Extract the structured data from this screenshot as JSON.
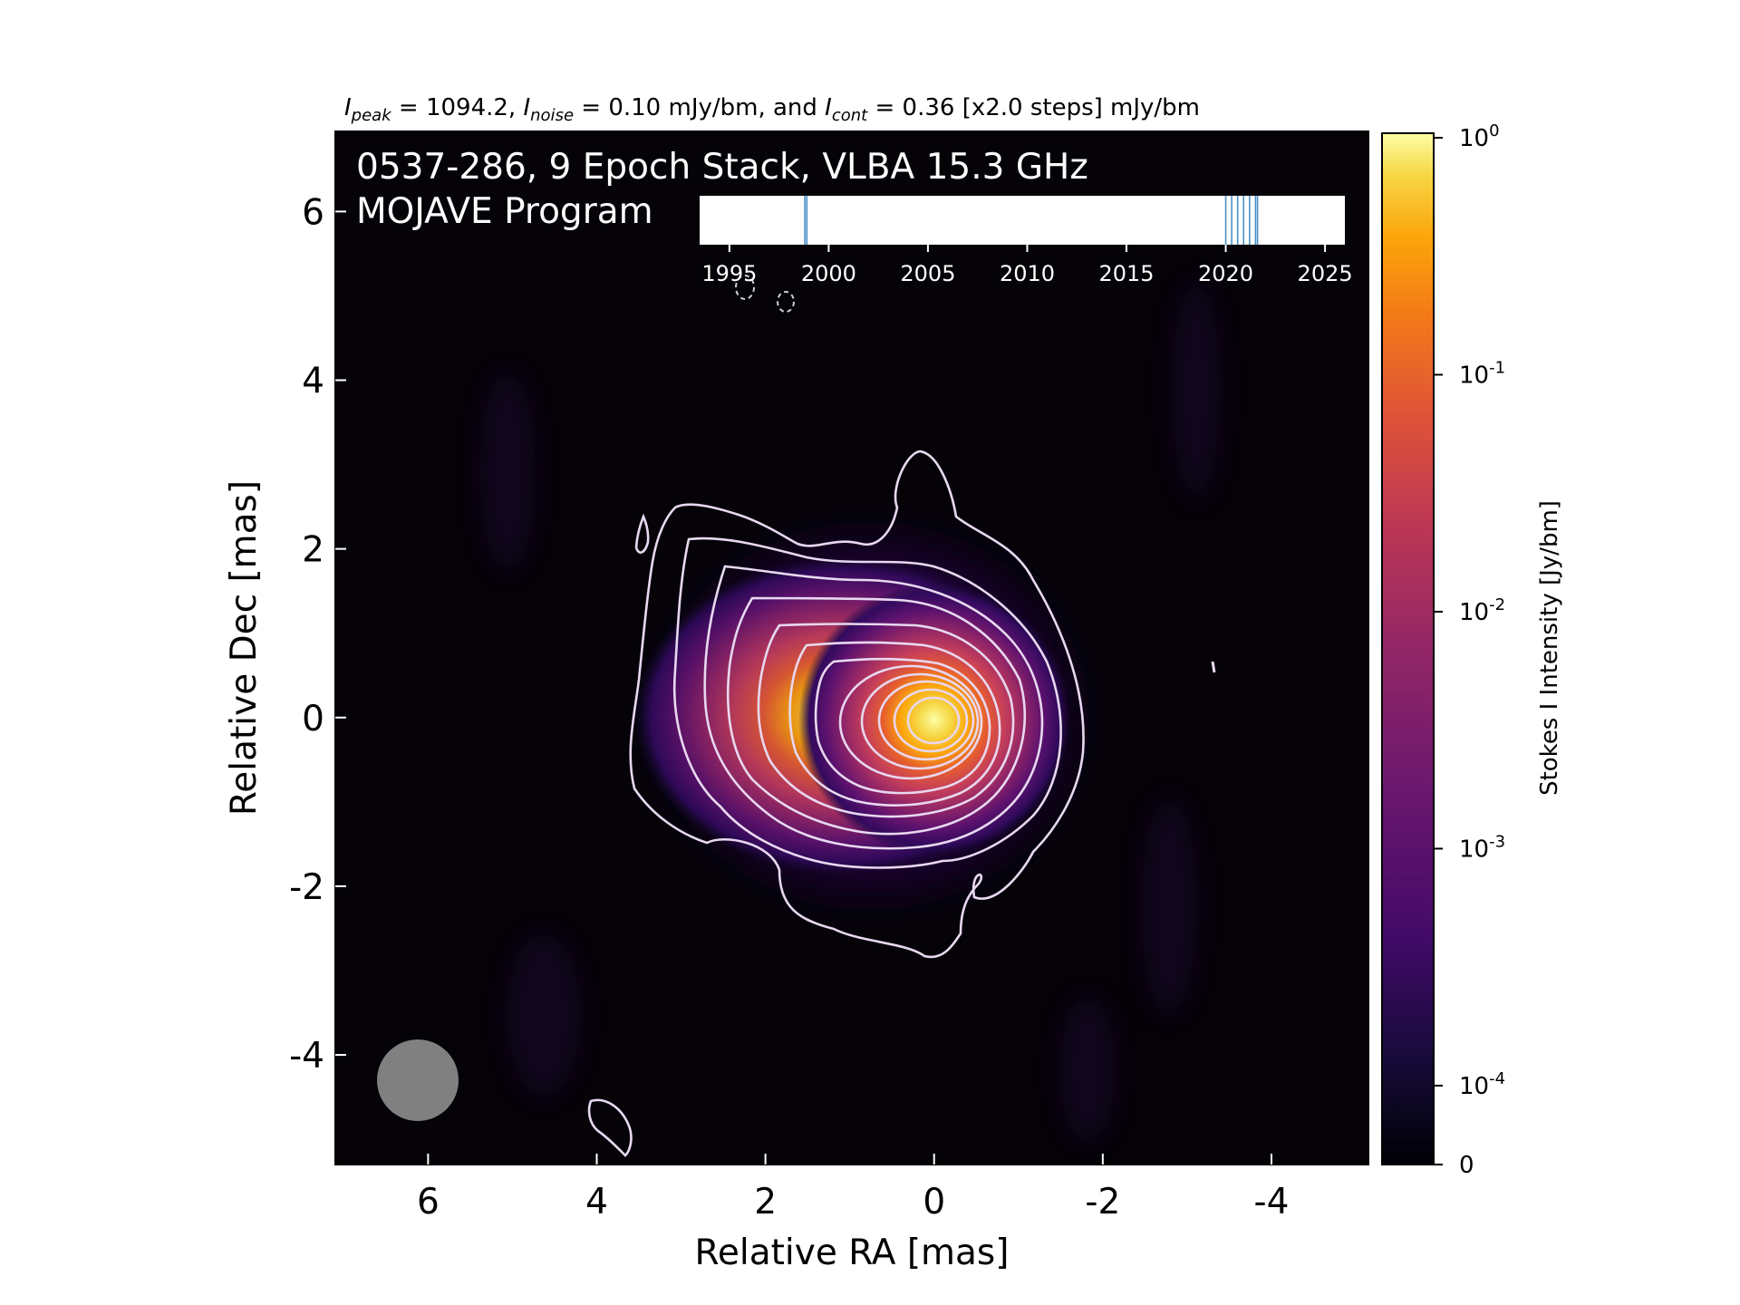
{
  "chart_data": {
    "type": "heatmap",
    "title": "I_peak = 1094.2, I_noise = 0.10 mJy/bm, and I_cont = 0.36 [x2.0 steps] mJy/bm",
    "title_parts": {
      "i1": "I",
      "s1": "peak",
      "t1": " = 1094.2, ",
      "i2": "I",
      "s2": "noise",
      "t2": " = 0.10 mJy/bm, and ",
      "i3": "I",
      "s3": "cont",
      "t3": " = 0.36 [x2.0 steps] mJy/bm"
    },
    "overlay_title_line1": "0537-286, 9 Epoch Stack, VLBA 15.3 GHz",
    "overlay_title_line2": "MOJAVE Program",
    "xlabel": "Relative RA [mas]",
    "ylabel": "Relative Dec [mas]",
    "xlim": [
      7.1,
      -5.15
    ],
    "ylim": [
      -5.3,
      6.95
    ],
    "x_ticks": [
      6,
      4,
      2,
      0,
      -2,
      -4
    ],
    "y_ticks": [
      6,
      4,
      2,
      0,
      -2,
      -4
    ],
    "peak_position": [
      0.0,
      0.0
    ],
    "peak_intensity_mJy_per_beam": 1094.2,
    "noise_mJy_per_beam": 0.1,
    "lowest_contour_mJy_per_beam": 0.36,
    "contour_step_factor": 2.0,
    "contour_color": "#e8d8f0",
    "beam": {
      "center": [
        6.15,
        -4.3
      ],
      "diameter_mas": 0.95,
      "color": "#808080"
    },
    "colorbar": {
      "label": "Stokes I Intensity [Jy/bm]",
      "scale": "log",
      "tick_values": [
        1,
        0.1,
        0.01,
        0.001,
        0.0001,
        0
      ],
      "tick_labels": [
        "10^0",
        "10^-1",
        "10^-2",
        "10^-3",
        "10^-4",
        "0"
      ],
      "colormap": "inferno"
    },
    "epoch_timeline": {
      "xlim": [
        1993.5,
        2026.0
      ],
      "ticks": [
        1995,
        2000,
        2005,
        2010,
        2015,
        2020,
        2025
      ],
      "epochs": [
        1998.8,
        1998.9,
        2020.0,
        2020.3,
        2020.6,
        2020.9,
        2021.2,
        2021.5,
        2021.6
      ],
      "epoch_color": "#4a90c8"
    }
  }
}
